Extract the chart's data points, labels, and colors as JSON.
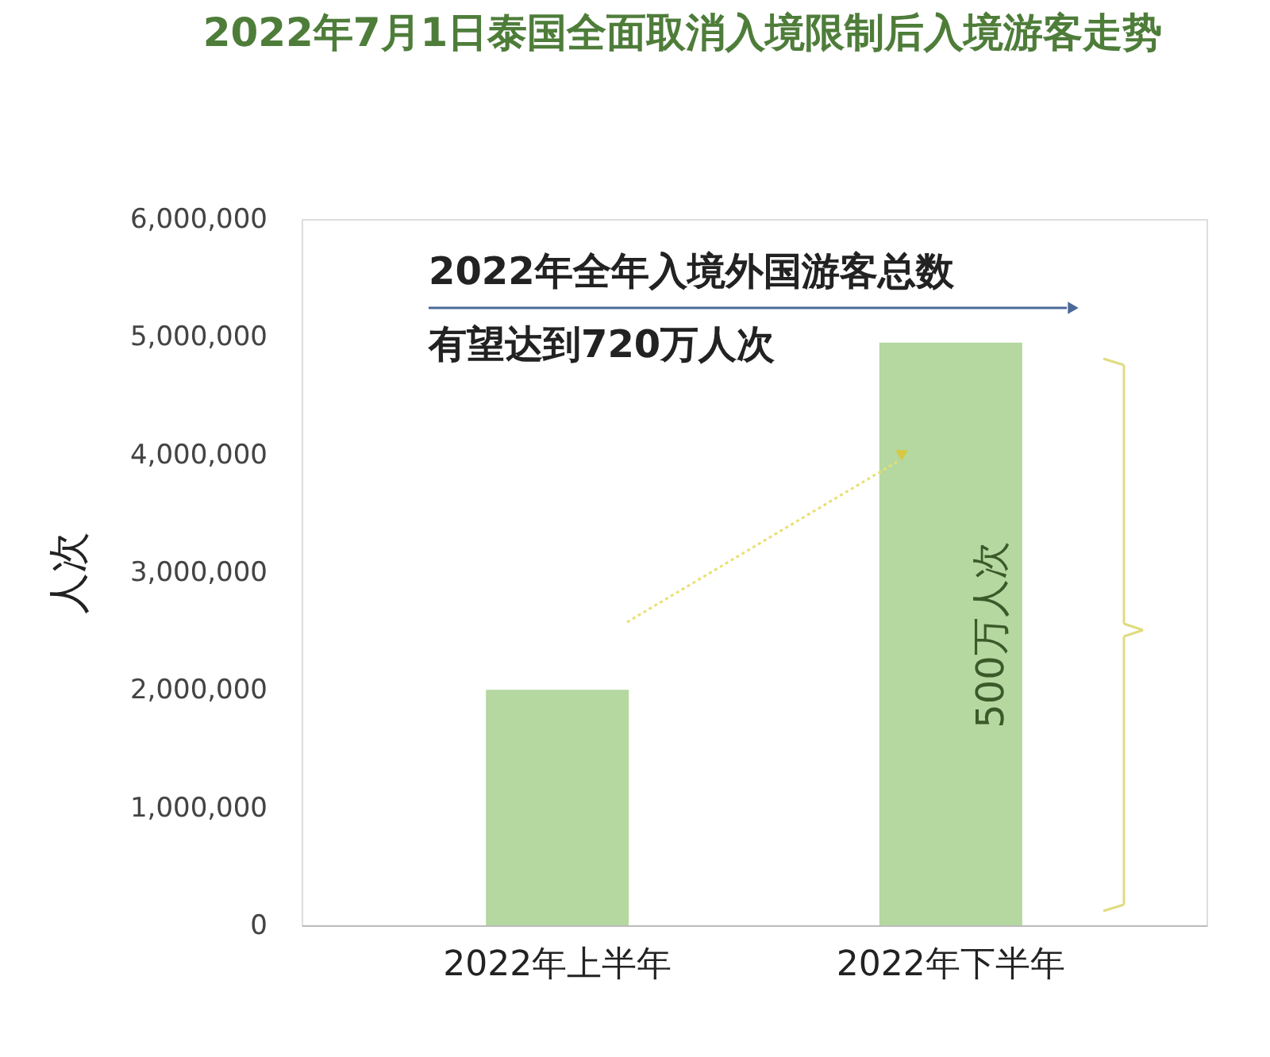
{
  "chart_data": {
    "type": "bar",
    "title": "2022年7月1日泰国全面取消入境限制后入境游客走势",
    "ylabel": "人次",
    "categories": [
      "2022年上半年",
      "2022年下半年"
    ],
    "values": [
      2000000,
      4950000
    ],
    "color": "#b5d7a0",
    "ylim": [
      0,
      6000000
    ],
    "yticks": [
      0,
      {
        "value": 1000000,
        "label": "1,000,000"
      },
      {
        "value": 2000000,
        "label": "2,000,000"
      },
      {
        "value": 3000000,
        "label": "3,000,000"
      },
      {
        "value": 4000000,
        "label": "4,000,000"
      },
      {
        "value": 5000000,
        "label": "5,000,000"
      },
      {
        "value": 6000000,
        "label": "6,000,000"
      }
    ],
    "annotations": [
      "2022年全年入境外国游客总数",
      "有望达到720万人次",
      "500万人次"
    ]
  }
}
